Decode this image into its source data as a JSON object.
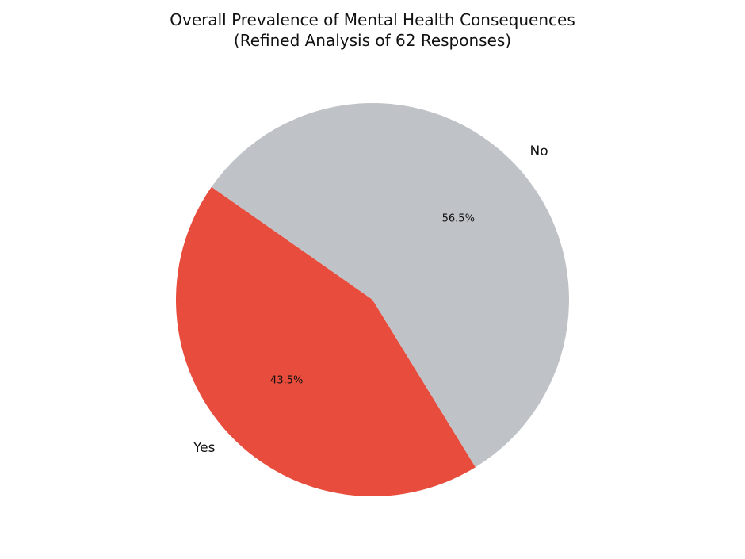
{
  "chart_data": {
    "type": "pie",
    "title_lines": [
      "Overall Prevalence of Mental Health Consequences",
      "(Refined Analysis of 62 Responses)"
    ],
    "slices": [
      {
        "label": "Yes",
        "value": 43.5,
        "pct_label": "43.5%",
        "color": "#e74c3c"
      },
      {
        "label": "No",
        "value": 56.5,
        "pct_label": "56.5%",
        "color": "#bfc3c7"
      }
    ],
    "start_angle_deg": 145,
    "direction": "counterclockwise"
  }
}
